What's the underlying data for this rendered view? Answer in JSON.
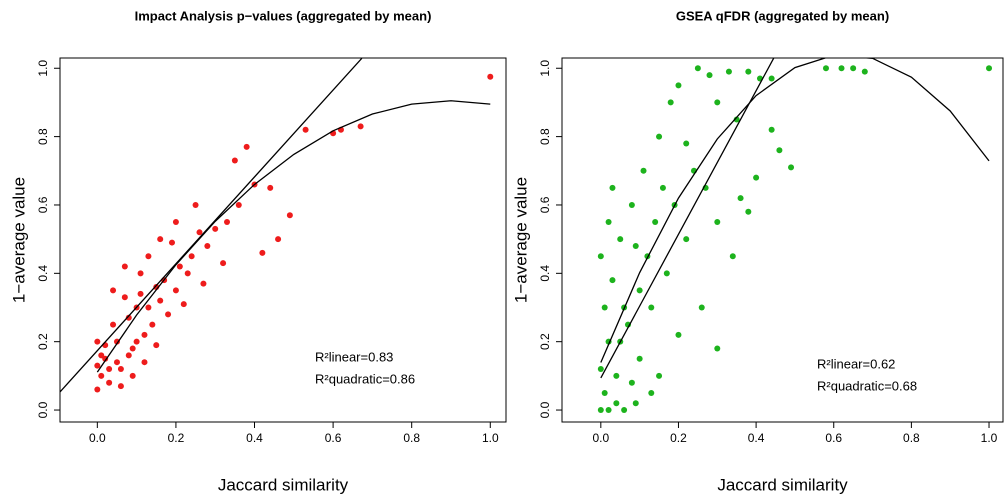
{
  "chart_data": [
    {
      "type": "scatter",
      "title": "Impact Analysis p−values (aggregated by mean)",
      "xlabel": "Jaccard similarity",
      "ylabel": "1−average value",
      "xlim": [
        -0.095,
        1.04
      ],
      "ylim": [
        -0.035,
        1.03
      ],
      "xticks": [
        {
          "value": 0,
          "label": "0.0"
        },
        0.2,
        0.4,
        0.6,
        0.8,
        {
          "value": 1,
          "label": "1.0"
        }
      ],
      "yticks": [
        {
          "value": 0,
          "label": "0.0"
        },
        0.2,
        0.4,
        0.6,
        0.8,
        {
          "value": 1,
          "label": "1.0"
        }
      ],
      "series": [
        {
          "color": "#ee1c1c",
          "x": [
            1.0,
            0.67,
            0.62,
            0.6,
            0.53,
            0.38,
            0.35,
            0.49,
            0.46,
            0.42,
            0.4,
            0.3,
            0.25,
            0.2,
            0.19,
            0.16,
            0.13,
            0.27,
            0.22,
            0.18,
            0.15,
            0.1,
            0.08,
            0.05,
            0.02,
            0.01,
            0.0,
            0.03,
            0.06,
            0.09,
            0.12,
            0.14,
            0.11,
            0.07,
            0.04,
            0.02,
            0.01,
            0.03,
            0.05,
            0.08,
            0.1,
            0.13,
            0.17,
            0.21,
            0.24,
            0.28,
            0.33,
            0.36,
            0.26,
            0.23,
            0.2,
            0.16,
            0.06,
            0.09,
            0.12,
            0.15,
            0.0,
            0.0,
            0.04,
            0.07,
            0.11,
            0.32,
            0.44
          ],
          "values": [
            0.975,
            0.83,
            0.82,
            0.81,
            0.82,
            0.77,
            0.73,
            0.57,
            0.5,
            0.46,
            0.66,
            0.53,
            0.6,
            0.55,
            0.49,
            0.5,
            0.45,
            0.37,
            0.31,
            0.28,
            0.36,
            0.3,
            0.27,
            0.2,
            0.15,
            0.1,
            0.06,
            0.08,
            0.12,
            0.18,
            0.22,
            0.25,
            0.34,
            0.33,
            0.25,
            0.19,
            0.16,
            0.12,
            0.14,
            0.16,
            0.2,
            0.3,
            0.38,
            0.42,
            0.45,
            0.48,
            0.55,
            0.6,
            0.52,
            0.4,
            0.35,
            0.32,
            0.07,
            0.1,
            0.14,
            0.19,
            0.13,
            0.2,
            0.35,
            0.42,
            0.4,
            0.43,
            0.65
          ]
        }
      ],
      "lines": [
        {
          "x": [
            -0.095,
            0.673
          ],
          "values": [
            0.053,
            1.029
          ]
        },
        {
          "x": [
            0,
            0.1,
            0.2,
            0.3,
            0.4,
            0.5,
            0.6,
            0.7,
            0.8,
            0.9,
            1.0
          ],
          "values": [
            0.111,
            0.278,
            0.425,
            0.552,
            0.66,
            0.748,
            0.817,
            0.866,
            0.895,
            0.905,
            0.895
          ]
        }
      ],
      "annotations": [
        "R²linear=0.83",
        "R²quadratic=0.86"
      ]
    },
    {
      "type": "scatter",
      "title": "GSEA qFDR (aggregated by mean)",
      "xlabel": "Jaccard similarity",
      "ylabel": "1−average value",
      "xlim": [
        -0.1,
        1.036
      ],
      "ylim": [
        -0.035,
        1.03
      ],
      "xticks": [
        {
          "value": 0,
          "label": "0.0"
        },
        0.2,
        0.4,
        0.6,
        0.8,
        {
          "value": 1,
          "label": "1.0"
        }
      ],
      "yticks": [
        {
          "value": 0,
          "label": "0.0"
        },
        0.2,
        0.4,
        0.6,
        0.8,
        {
          "value": 1,
          "label": "1.0"
        }
      ],
      "series": [
        {
          "color": "#1db31d",
          "x": [
            0.0,
            0.01,
            0.0,
            0.02,
            0.01,
            0.03,
            0.0,
            0.05,
            0.02,
            0.08,
            0.06,
            0.09,
            0.04,
            0.07,
            0.1,
            0.12,
            0.14,
            0.11,
            0.15,
            0.18,
            0.2,
            0.25,
            0.28,
            0.33,
            0.38,
            0.41,
            0.44,
            0.58,
            0.62,
            0.65,
            0.68,
            1.0,
            0.44,
            0.46,
            0.49,
            0.4,
            0.38,
            0.36,
            0.3,
            0.27,
            0.24,
            0.22,
            0.19,
            0.17,
            0.13,
            0.1,
            0.08,
            0.06,
            0.05,
            0.03,
            0.13,
            0.3,
            0.34,
            0.26,
            0.22,
            0.16,
            0.09,
            0.04,
            0.02,
            0.15,
            0.2,
            0.35,
            0.3
          ],
          "values": [
            0.0,
            0.05,
            0.12,
            0.2,
            0.3,
            0.38,
            0.45,
            0.5,
            0.55,
            0.6,
            0.0,
            0.02,
            0.1,
            0.25,
            0.35,
            0.45,
            0.55,
            0.7,
            0.8,
            0.9,
            0.95,
            1.0,
            0.98,
            0.99,
            0.99,
            0.97,
            0.97,
            1.0,
            1.0,
            1.0,
            0.99,
            1.0,
            0.82,
            0.76,
            0.71,
            0.68,
            0.58,
            0.62,
            0.55,
            0.65,
            0.7,
            0.78,
            0.6,
            0.4,
            0.3,
            0.15,
            0.08,
            0.3,
            0.2,
            0.65,
            0.05,
            0.18,
            0.45,
            0.3,
            0.5,
            0.65,
            0.48,
            0.02,
            0.0,
            0.1,
            0.22,
            0.85,
            0.9
          ]
        }
      ],
      "lines": [
        {
          "x": [
            0,
            0.447
          ],
          "values": [
            0.094,
            1.033
          ]
        },
        {
          "x": [
            0,
            0.1,
            0.2,
            0.3,
            0.4,
            0.5,
            0.6,
            0.7,
            0.8,
            0.9,
            1.0
          ],
          "values": [
            0.139,
            0.402,
            0.62,
            0.793,
            0.92,
            1.002,
            1.038,
            1.029,
            0.974,
            0.875,
            0.729
          ]
        }
      ],
      "annotations": [
        "R²linear=0.62",
        "R²quadratic=0.68"
      ]
    }
  ]
}
